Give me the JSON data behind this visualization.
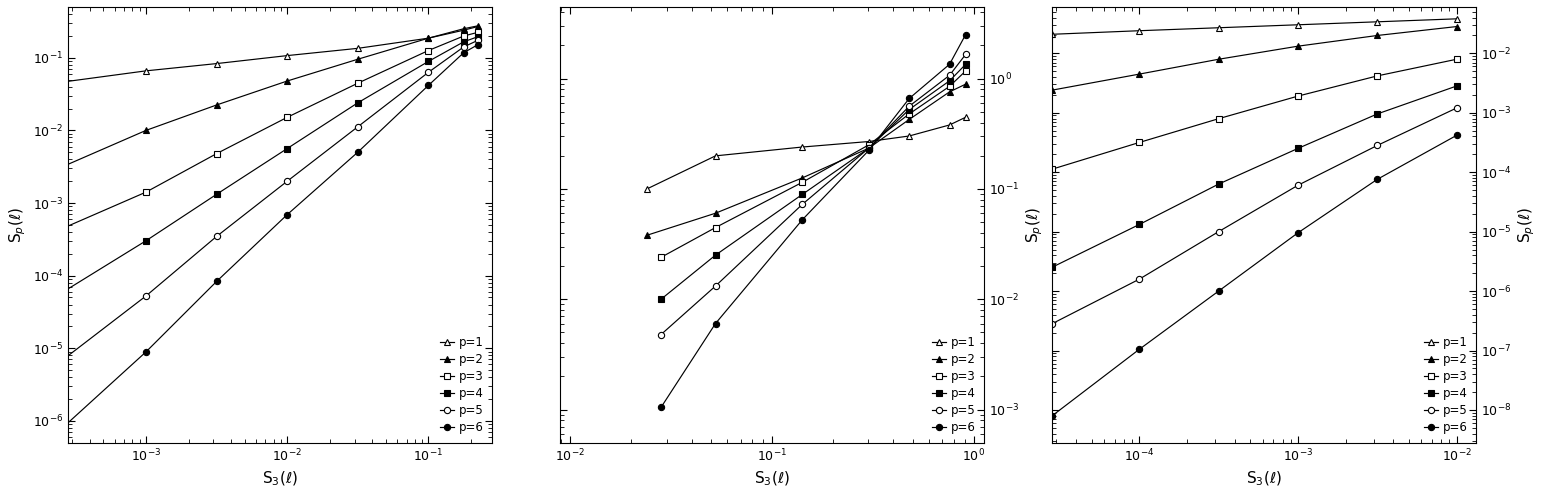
{
  "panels": [
    {
      "xlim_log": [
        -3.55,
        -0.55
      ],
      "ylim_log": [
        -6.3,
        -0.3
      ],
      "xlabel": "S$_3$($\\ell$)",
      "ylabel_side": "left",
      "series": [
        {
          "marker": "^",
          "filled": false,
          "x_log": [
            -3.65,
            -3.0,
            -2.5,
            -2.0,
            -1.5,
            -1.0,
            -0.75,
            -0.65
          ],
          "y_log": [
            -1.35,
            -1.18,
            -1.08,
            -0.97,
            -0.87,
            -0.73,
            -0.62,
            -0.57
          ]
        },
        {
          "marker": "^",
          "filled": true,
          "x_log": [
            -3.65,
            -3.0,
            -2.5,
            -2.0,
            -1.5,
            -1.0,
            -0.75,
            -0.65
          ],
          "y_log": [
            -2.55,
            -2.0,
            -1.65,
            -1.32,
            -1.02,
            -0.73,
            -0.6,
            -0.56
          ]
        },
        {
          "marker": "s",
          "filled": false,
          "x_log": [
            -3.65,
            -3.0,
            -2.5,
            -2.0,
            -1.5,
            -1.0,
            -0.75,
            -0.65
          ],
          "y_log": [
            -3.4,
            -2.85,
            -2.32,
            -1.82,
            -1.35,
            -0.9,
            -0.7,
            -0.65
          ]
        },
        {
          "marker": "s",
          "filled": true,
          "x_log": [
            -3.65,
            -3.0,
            -2.5,
            -2.0,
            -1.5,
            -1.0,
            -0.75,
            -0.65
          ],
          "y_log": [
            -4.3,
            -3.52,
            -2.88,
            -2.25,
            -1.62,
            -1.05,
            -0.78,
            -0.71
          ]
        },
        {
          "marker": "o",
          "filled": false,
          "x_log": [
            -3.65,
            -3.0,
            -2.5,
            -2.0,
            -1.5,
            -1.0,
            -0.75,
            -0.65
          ],
          "y_log": [
            -5.25,
            -4.28,
            -3.46,
            -2.7,
            -1.95,
            -1.2,
            -0.85,
            -0.76
          ]
        },
        {
          "marker": "o",
          "filled": true,
          "x_log": [
            -3.65,
            -3.0,
            -2.5,
            -2.0,
            -1.5,
            -1.0,
            -0.75,
            -0.65
          ],
          "y_log": [
            -6.2,
            -5.05,
            -4.08,
            -3.16,
            -2.3,
            -1.38,
            -0.93,
            -0.82
          ]
        }
      ]
    },
    {
      "xlim_log": [
        -2.05,
        0.05
      ],
      "ylim_log": [
        -3.3,
        0.65
      ],
      "xlabel": "S$_3$($\\ell$)",
      "ylabel_side": "right",
      "series": [
        {
          "marker": "^",
          "filled": false,
          "x_log": [
            -1.62,
            -1.28,
            -0.85,
            -0.52,
            -0.32,
            -0.12,
            -0.04
          ],
          "y_log": [
            -1.0,
            -0.7,
            -0.62,
            -0.57,
            -0.52,
            -0.42,
            -0.35
          ]
        },
        {
          "marker": "^",
          "filled": true,
          "x_log": [
            -1.62,
            -1.28,
            -0.85,
            -0.52,
            -0.32,
            -0.12,
            -0.04
          ],
          "y_log": [
            -1.42,
            -1.22,
            -0.9,
            -0.63,
            -0.37,
            -0.12,
            -0.05
          ]
        },
        {
          "marker": "s",
          "filled": false,
          "x_log": [
            -1.55,
            -1.28,
            -0.85,
            -0.52,
            -0.32,
            -0.12,
            -0.04
          ],
          "y_log": [
            -1.62,
            -1.35,
            -0.94,
            -0.6,
            -0.32,
            -0.07,
            0.07
          ]
        },
        {
          "marker": "s",
          "filled": true,
          "x_log": [
            -1.55,
            -1.28,
            -0.85,
            -0.52,
            -0.32,
            -0.12,
            -0.04
          ],
          "y_log": [
            -2.0,
            -1.6,
            -1.05,
            -0.63,
            -0.28,
            -0.02,
            0.13
          ]
        },
        {
          "marker": "o",
          "filled": false,
          "x_log": [
            -1.55,
            -1.28,
            -0.85,
            -0.52,
            -0.32,
            -0.12,
            -0.04
          ],
          "y_log": [
            -2.32,
            -1.88,
            -1.14,
            -0.63,
            -0.25,
            0.03,
            0.22
          ]
        },
        {
          "marker": "o",
          "filled": true,
          "x_log": [
            -1.55,
            -1.28,
            -0.85,
            -0.52,
            -0.32,
            -0.12,
            -0.04
          ],
          "y_log": [
            -2.98,
            -2.22,
            -1.28,
            -0.65,
            -0.18,
            0.13,
            0.4
          ]
        }
      ]
    },
    {
      "xlim_log": [
        -4.55,
        -1.88
      ],
      "ylim_log": [
        -8.55,
        -1.22
      ],
      "xlabel": "S$_3$($\\ell$)",
      "ylabel_side": "right",
      "series": [
        {
          "marker": "^",
          "filled": false,
          "x_log": [
            -4.55,
            -4.0,
            -3.5,
            -3.0,
            -2.5,
            -2.0
          ],
          "y_log": [
            -1.68,
            -1.62,
            -1.57,
            -1.52,
            -1.47,
            -1.42
          ]
        },
        {
          "marker": "^",
          "filled": true,
          "x_log": [
            -4.55,
            -4.0,
            -3.5,
            -3.0,
            -2.5,
            -2.0
          ],
          "y_log": [
            -2.62,
            -2.35,
            -2.1,
            -1.88,
            -1.7,
            -1.55
          ]
        },
        {
          "marker": "s",
          "filled": false,
          "x_log": [
            -4.55,
            -4.0,
            -3.5,
            -3.0,
            -2.5,
            -2.0
          ],
          "y_log": [
            -3.95,
            -3.5,
            -3.1,
            -2.72,
            -2.38,
            -2.1
          ]
        },
        {
          "marker": "s",
          "filled": true,
          "x_log": [
            -4.55,
            -4.0,
            -3.5,
            -3.0,
            -2.5,
            -2.0
          ],
          "y_log": [
            -5.6,
            -4.88,
            -4.2,
            -3.6,
            -3.02,
            -2.55
          ]
        },
        {
          "marker": "o",
          "filled": false,
          "x_log": [
            -4.55,
            -4.0,
            -3.5,
            -3.0,
            -2.5,
            -2.0
          ],
          "y_log": [
            -6.55,
            -5.8,
            -5.0,
            -4.22,
            -3.55,
            -2.92
          ]
        },
        {
          "marker": "o",
          "filled": true,
          "x_log": [
            -4.55,
            -4.0,
            -3.5,
            -3.0,
            -2.5,
            -2.0
          ],
          "y_log": [
            -8.1,
            -6.98,
            -6.0,
            -5.02,
            -4.12,
            -3.38
          ]
        }
      ]
    }
  ],
  "legend_entries": [
    {
      "marker": "^",
      "filled": false,
      "label": "p=1"
    },
    {
      "marker": "^",
      "filled": true,
      "label": "p=2"
    },
    {
      "marker": "s",
      "filled": false,
      "label": "p=3"
    },
    {
      "marker": "s",
      "filled": true,
      "label": "p=4"
    },
    {
      "marker": "o",
      "filled": false,
      "label": "p=5"
    },
    {
      "marker": "o",
      "filled": true,
      "label": "p=6"
    }
  ],
  "Sp_ylabel": "S$_p$($\\ell$)",
  "linewidth": 0.85,
  "markersize": 4.5,
  "markeredgewidth": 0.8,
  "legend_fontsize": 8.5,
  "tick_labelsize": 9,
  "axis_labelsize": 11
}
